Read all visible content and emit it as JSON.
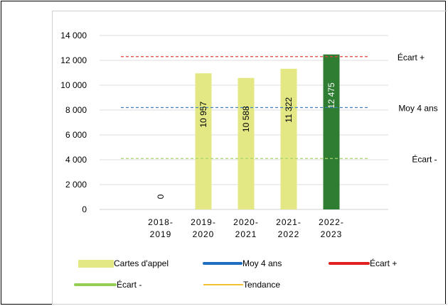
{
  "chart_data": {
    "type": "bar",
    "categories": [
      [
        "2018-",
        "2019"
      ],
      [
        "2019-",
        "2020"
      ],
      [
        "2020-",
        "2021"
      ],
      [
        "2021-",
        "2022"
      ],
      [
        "2022-",
        "2023"
      ]
    ],
    "series": [
      {
        "name": "Cartes d'appel",
        "values": [
          0,
          10957,
          10588,
          11322,
          12475
        ],
        "value_labels": [
          "0",
          "10 957",
          "10 588",
          "11 322",
          "12 475"
        ],
        "color": "#e3e885",
        "highlight_color": "#2f7d32"
      }
    ],
    "reference_lines": [
      {
        "name": "Écart +",
        "value": 12300,
        "color": "#e8423b"
      },
      {
        "name": "Moy 4 ans",
        "value": 8200,
        "color": "#3e7fc4"
      },
      {
        "name": "Écart -",
        "value": 4100,
        "color": "#a9d36b"
      }
    ],
    "ylim": [
      0,
      14000
    ],
    "yticks": [
      0,
      2000,
      4000,
      6000,
      8000,
      10000,
      12000,
      14000
    ],
    "ytick_labels": [
      "0",
      "2 000",
      "4 000",
      "6 000",
      "8 000",
      "10 000",
      "12 000",
      "14 000"
    ],
    "grid": true,
    "legend_placement": "bottom"
  },
  "legend": {
    "bars_label": "Cartes d'appel",
    "moy_label": "Moy 4 ans",
    "ecart_plus_label": "Écart +",
    "ecart_minus_label": "Écart -",
    "tendance_label": "Tendance",
    "colors": {
      "bars": "#e3e885",
      "moy": "#1f6fbf",
      "ecart_plus": "#e02020",
      "ecart_minus": "#92cf52",
      "tendance": "#f2c230"
    }
  }
}
